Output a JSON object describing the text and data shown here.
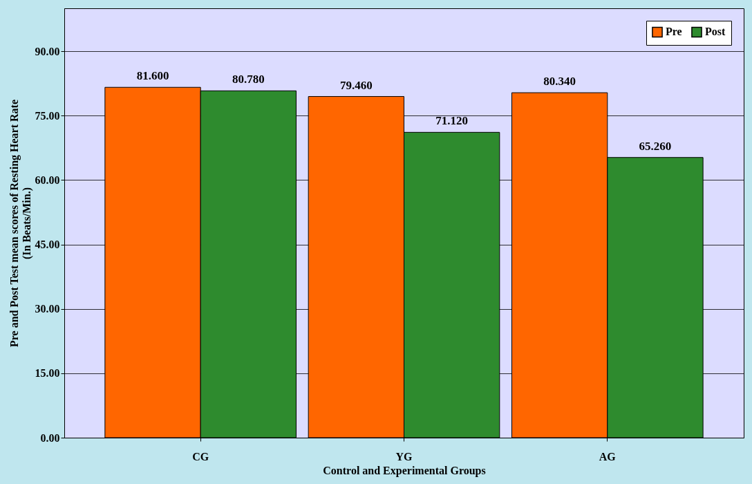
{
  "chart_data": {
    "type": "bar",
    "xlabel": "Control and Experimental Groups",
    "ylabel": "Pre and Post Test mean scores of Resting Heart Rate (In Beats/Min.)",
    "categories": [
      "CG",
      "YG",
      "AG"
    ],
    "series": [
      {
        "name": "Pre",
        "color": "#ff6600",
        "values": [
          81.6,
          79.46,
          80.34
        ],
        "value_labels": [
          "81.600",
          "79.460",
          "80.340"
        ]
      },
      {
        "name": "Post",
        "color": "#2e8b2e",
        "values": [
          80.78,
          71.12,
          65.26
        ],
        "value_labels": [
          "80.780",
          "71.120",
          "65.260"
        ]
      }
    ],
    "ylim": [
      0,
      100
    ],
    "yticks": [
      {
        "value": 0,
        "label": "0.00"
      },
      {
        "value": 15,
        "label": "15.00"
      },
      {
        "value": 30,
        "label": "30.00"
      },
      {
        "value": 45,
        "label": "45.00"
      },
      {
        "value": 60,
        "label": "60.00"
      },
      {
        "value": 75,
        "label": "75.00"
      },
      {
        "value": 90,
        "label": "90.00"
      }
    ],
    "grid": "y",
    "legend": "top right"
  }
}
